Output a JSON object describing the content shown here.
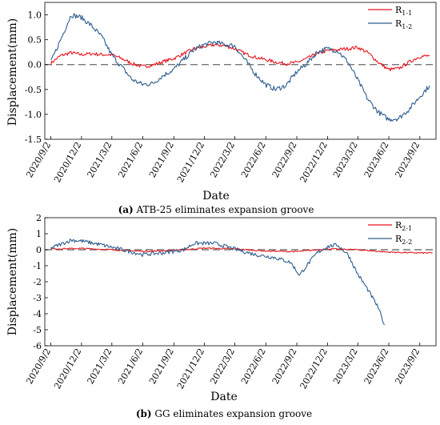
{
  "chart_data": [
    {
      "type": "line",
      "caption_letter": "(a)",
      "caption_text": " ATB-25 eliminates expansion groove",
      "xlabel": "Date",
      "ylabel": "Displacement(mm)",
      "ylim": [
        -1.5,
        1.25
      ],
      "yticks": [
        "1.0",
        "0.5",
        "0.0",
        "-0.5",
        "-1.0",
        "-1.5"
      ],
      "ytick_values": [
        1.0,
        0.5,
        0.0,
        -0.5,
        -1.0,
        -1.5
      ],
      "xticks": [
        "2020/9/2",
        "2020/12/2",
        "2021/3/2",
        "2021/6/2",
        "2021/9/2",
        "2021/12/2",
        "2022/3/2",
        "2022/6/2",
        "2022/9/2",
        "2022/12/2",
        "2023/3/2",
        "2023/6/2",
        "2023/9/2"
      ],
      "xlim": [
        "2020-08-15",
        "2023-10-20"
      ],
      "legend_position": "top-right",
      "reference_line": 0,
      "series": [
        {
          "name": "R1-1",
          "label_main": "R",
          "label_sub": "1-1",
          "color": "#e8141c",
          "points": [
            [
              "2020-09-02",
              0.03
            ],
            [
              "2020-10-01",
              0.18
            ],
            [
              "2020-11-01",
              0.24
            ],
            [
              "2020-12-01",
              0.2
            ],
            [
              "2021-01-01",
              0.22
            ],
            [
              "2021-02-01",
              0.2
            ],
            [
              "2021-03-01",
              0.2
            ],
            [
              "2021-04-01",
              0.12
            ],
            [
              "2021-05-01",
              0.02
            ],
            [
              "2021-06-01",
              -0.04
            ],
            [
              "2021-07-01",
              -0.01
            ],
            [
              "2021-08-01",
              0.06
            ],
            [
              "2021-09-01",
              0.12
            ],
            [
              "2021-10-01",
              0.22
            ],
            [
              "2021-11-01",
              0.32
            ],
            [
              "2021-12-01",
              0.36
            ],
            [
              "2022-01-01",
              0.4
            ],
            [
              "2022-02-01",
              0.38
            ],
            [
              "2022-03-01",
              0.32
            ],
            [
              "2022-04-01",
              0.22
            ],
            [
              "2022-05-01",
              0.15
            ],
            [
              "2022-06-01",
              0.1
            ],
            [
              "2022-07-01",
              0.05
            ],
            [
              "2022-08-01",
              0.02
            ],
            [
              "2022-09-01",
              0.04
            ],
            [
              "2022-10-01",
              0.12
            ],
            [
              "2022-11-01",
              0.22
            ],
            [
              "2022-12-01",
              0.28
            ],
            [
              "2023-01-01",
              0.3
            ],
            [
              "2023-02-01",
              0.32
            ],
            [
              "2023-03-01",
              0.35
            ],
            [
              "2023-04-01",
              0.24
            ],
            [
              "2023-05-01",
              0.05
            ],
            [
              "2023-06-01",
              -0.1
            ],
            [
              "2023-07-01",
              -0.08
            ],
            [
              "2023-08-01",
              0.05
            ],
            [
              "2023-09-01",
              0.16
            ],
            [
              "2023-10-01",
              0.18
            ]
          ]
        },
        {
          "name": "R1-2",
          "label_main": "R",
          "label_sub": "1-2",
          "color": "#2e5e8e",
          "points": [
            [
              "2020-09-02",
              0.05
            ],
            [
              "2020-10-01",
              0.5
            ],
            [
              "2020-11-01",
              1.0
            ],
            [
              "2020-12-01",
              0.95
            ],
            [
              "2021-01-01",
              0.78
            ],
            [
              "2021-02-01",
              0.55
            ],
            [
              "2021-03-01",
              0.2
            ],
            [
              "2021-04-01",
              -0.05
            ],
            [
              "2021-05-01",
              -0.3
            ],
            [
              "2021-06-01",
              -0.4
            ],
            [
              "2021-07-01",
              -0.38
            ],
            [
              "2021-08-01",
              -0.22
            ],
            [
              "2021-09-01",
              -0.1
            ],
            [
              "2021-10-01",
              0.1
            ],
            [
              "2021-11-01",
              0.3
            ],
            [
              "2021-12-01",
              0.4
            ],
            [
              "2022-01-01",
              0.45
            ],
            [
              "2022-02-01",
              0.4
            ],
            [
              "2022-03-01",
              0.38
            ],
            [
              "2022-04-01",
              0.1
            ],
            [
              "2022-05-01",
              -0.18
            ],
            [
              "2022-06-01",
              -0.4
            ],
            [
              "2022-07-01",
              -0.5
            ],
            [
              "2022-08-01",
              -0.42
            ],
            [
              "2022-09-01",
              -0.15
            ],
            [
              "2022-10-01",
              0.02
            ],
            [
              "2022-11-01",
              0.25
            ],
            [
              "2022-12-01",
              0.32
            ],
            [
              "2023-01-01",
              0.28
            ],
            [
              "2023-02-01",
              0.05
            ],
            [
              "2023-03-01",
              -0.3
            ],
            [
              "2023-04-01",
              -0.7
            ],
            [
              "2023-05-01",
              -0.95
            ],
            [
              "2023-06-01",
              -1.1
            ],
            [
              "2023-07-01",
              -1.08
            ],
            [
              "2023-08-01",
              -0.9
            ],
            [
              "2023-09-01",
              -0.65
            ],
            [
              "2023-10-01",
              -0.42
            ]
          ]
        }
      ]
    },
    {
      "type": "line",
      "caption_letter": "(b)",
      "caption_text": " GG eliminates expansion groove",
      "xlabel": "Date",
      "ylabel": "Displacement(mm)",
      "ylim": [
        -6,
        2
      ],
      "yticks": [
        "2",
        "1",
        "0",
        "-1",
        "-2",
        "-3",
        "-4",
        "-5",
        "-6"
      ],
      "ytick_values": [
        2,
        1,
        0,
        -1,
        -2,
        -3,
        -4,
        -5,
        -6
      ],
      "xticks": [
        "2020/9/2",
        "2020/12/2",
        "2021/3/2",
        "2021/6/2",
        "2021/9/2",
        "2021/12/2",
        "2022/3/2",
        "2022/6/2",
        "2022/9/2",
        "2022/12/2",
        "2023/3/2",
        "2023/6/2",
        "2023/9/2"
      ],
      "xlim": [
        "2020-08-15",
        "2023-10-20"
      ],
      "legend_position": "top-right",
      "reference_line": 0,
      "series": [
        {
          "name": "R2-1",
          "label_main": "R",
          "label_sub": "2-1",
          "color": "#e8141c",
          "points": [
            [
              "2020-09-02",
              0.05
            ],
            [
              "2020-12-01",
              0.08
            ],
            [
              "2021-03-01",
              0.0
            ],
            [
              "2021-06-01",
              -0.1
            ],
            [
              "2021-09-01",
              -0.05
            ],
            [
              "2021-12-01",
              0.1
            ],
            [
              "2022-03-01",
              0.05
            ],
            [
              "2022-06-01",
              -0.08
            ],
            [
              "2022-09-01",
              -0.12
            ],
            [
              "2022-12-01",
              0.05
            ],
            [
              "2023-03-01",
              0.0
            ],
            [
              "2023-06-01",
              -0.15
            ],
            [
              "2023-09-01",
              -0.2
            ],
            [
              "2023-10-10",
              -0.2
            ]
          ]
        },
        {
          "name": "R2-2",
          "label_main": "R",
          "label_sub": "2-2",
          "color": "#2e5e8e",
          "points": [
            [
              "2020-09-02",
              0.1
            ],
            [
              "2020-11-01",
              0.6
            ],
            [
              "2020-12-01",
              0.55
            ],
            [
              "2021-02-01",
              0.3
            ],
            [
              "2021-04-01",
              0.0
            ],
            [
              "2021-06-01",
              -0.3
            ],
            [
              "2021-08-01",
              -0.2
            ],
            [
              "2021-10-01",
              0.0
            ],
            [
              "2021-11-01",
              0.4
            ],
            [
              "2022-01-01",
              0.4
            ],
            [
              "2022-03-01",
              0.05
            ],
            [
              "2022-05-01",
              -0.3
            ],
            [
              "2022-07-01",
              -0.5
            ],
            [
              "2022-08-15",
              -0.8
            ],
            [
              "2022-09-10",
              -1.6
            ],
            [
              "2022-10-01",
              -1.0
            ],
            [
              "2022-11-01",
              -0.2
            ],
            [
              "2022-12-01",
              0.2
            ],
            [
              "2023-01-01",
              0.3
            ],
            [
              "2023-02-01",
              -0.3
            ],
            [
              "2023-03-01",
              -1.5
            ],
            [
              "2023-04-01",
              -2.5
            ],
            [
              "2023-05-01",
              -3.6
            ],
            [
              "2023-05-20",
              -4.7
            ]
          ]
        }
      ]
    }
  ]
}
